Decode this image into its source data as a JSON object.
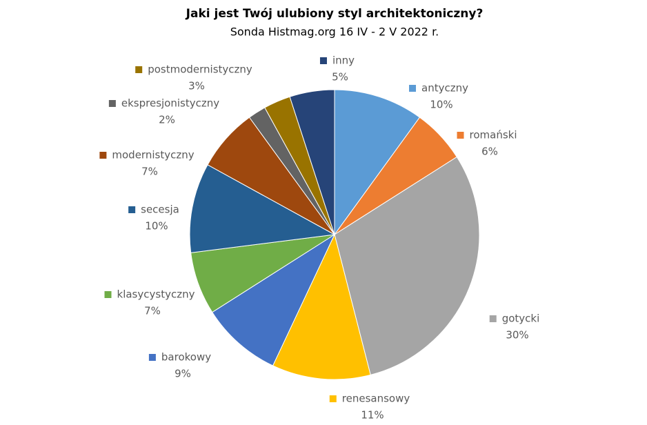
{
  "chart_data": {
    "type": "pie",
    "title": "Jaki jest Twój ulubiony styl architektoniczny?",
    "subtitle": "Sonda Histmag.org 16 IV - 2 V 2022 r.",
    "categories": [
      "antyczny",
      "romański",
      "gotycki",
      "renesansowy",
      "barokowy",
      "klasycystyczny",
      "secesja",
      "modernistyczny",
      "ekspresjonistyczny",
      "postmodernistyczny",
      "inny"
    ],
    "values": [
      10,
      6,
      30,
      11,
      9,
      7,
      10,
      7,
      2,
      3,
      5
    ],
    "value_labels": [
      "10%",
      "6%",
      "30%",
      "11%",
      "9%",
      "7%",
      "10%",
      "7%",
      "2%",
      "3%",
      "5%"
    ],
    "colors": [
      "#5b9bd5",
      "#ed7d31",
      "#a5a5a5",
      "#ffc000",
      "#4472c4",
      "#70ad47",
      "#255e91",
      "#9e480e",
      "#636363",
      "#997300",
      "#264478"
    ]
  }
}
